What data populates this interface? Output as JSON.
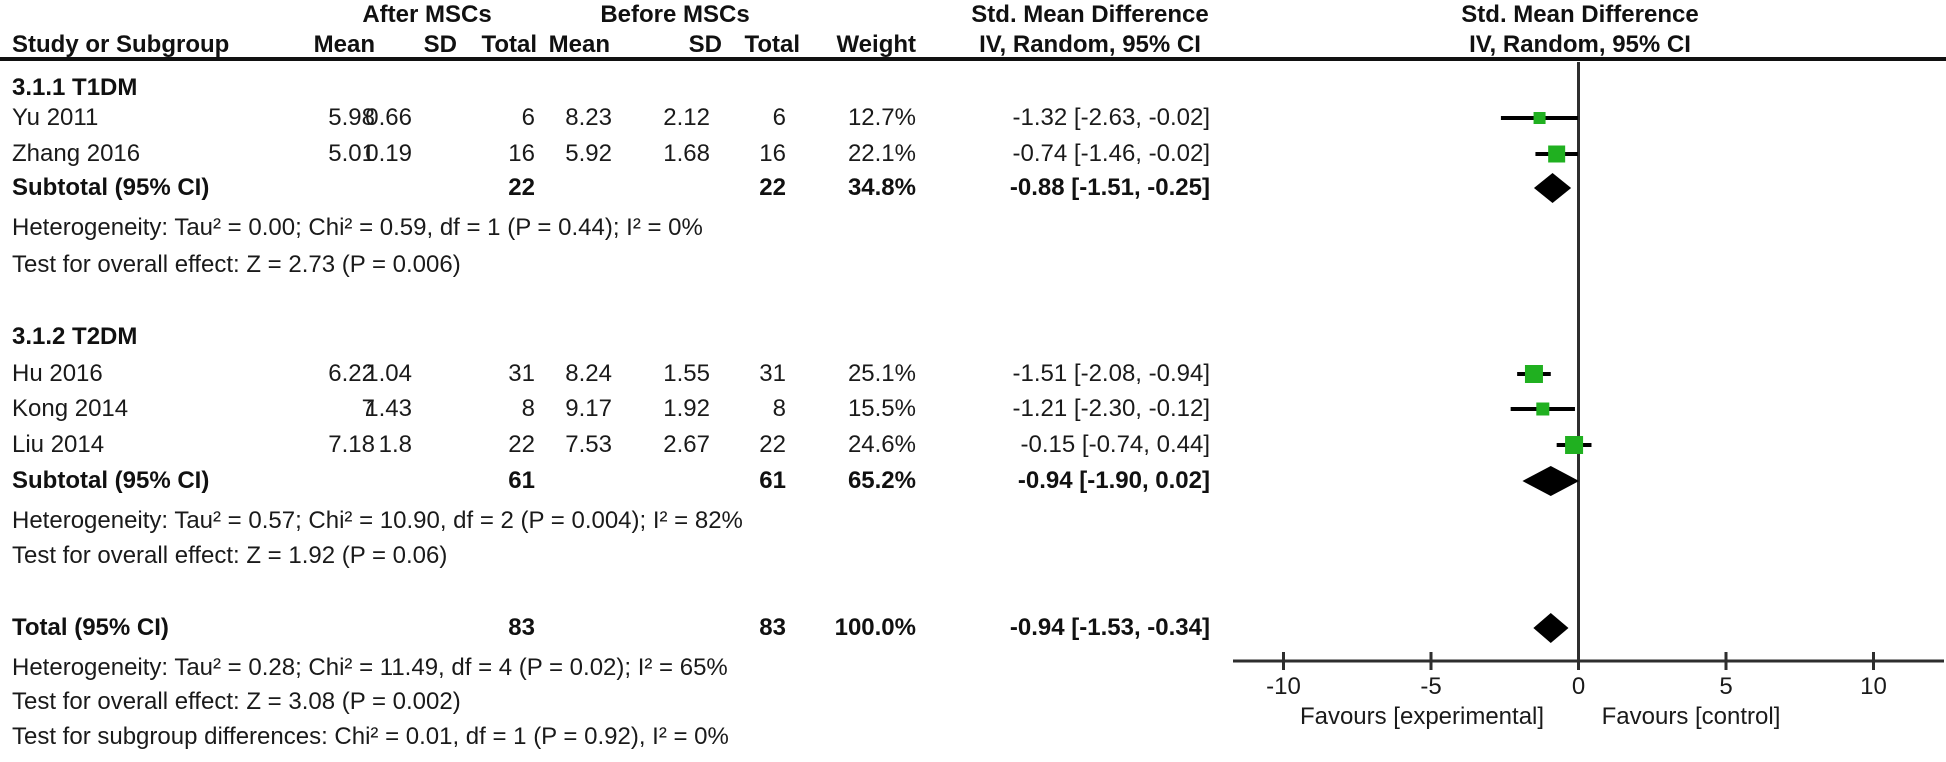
{
  "colors": {
    "marker_green": "#20B020",
    "ci_line": "#000000",
    "axis_line": "#2E2E2E",
    "text": "#1a1a1a"
  },
  "header": {
    "group_after": "After MSCs",
    "group_before": "Before MSCs",
    "smd_left": "Std. Mean Difference",
    "smd_right": "Std. Mean Difference",
    "study_col": "Study or Subgroup",
    "mean_a": "Mean",
    "sd_a": "SD",
    "total_a": "Total",
    "mean_b": "Mean",
    "sd_b": "SD",
    "total_b": "Total",
    "weight": "Weight",
    "ivci_left": "IV, Random, 95% CI",
    "ivci_right": "IV, Random, 95% CI"
  },
  "chart_data": {
    "type": "forest",
    "effect_measure": "Std. Mean Difference",
    "method": "IV, Random, 95% CI",
    "axis": {
      "ticks": [
        -10,
        -5,
        0,
        5,
        10
      ],
      "xmin": -11.7,
      "xmax": 12.4,
      "favours_left": "Favours [experimental]",
      "favours_right": "Favours [control]"
    },
    "groups": [
      {
        "label": "3.1.1 T1DM",
        "studies": [
          {
            "study": "Yu 2011",
            "mean_a": "5.98",
            "sd_a": "0.66",
            "total_a": "6",
            "mean_b": "8.23",
            "sd_b": "2.12",
            "total_b": "6",
            "weight": "12.7%",
            "ci_text": "-1.32 [-2.63, -0.02]"
          },
          {
            "study": "Zhang 2016",
            "mean_a": "5.01",
            "sd_a": "0.19",
            "total_a": "16",
            "mean_b": "5.92",
            "sd_b": "1.68",
            "total_b": "16",
            "weight": "22.1%",
            "ci_text": "-0.74 [-1.46, -0.02]"
          }
        ],
        "subtotal": {
          "label": "Subtotal (95% CI)",
          "total_a": "22",
          "total_b": "22",
          "weight": "34.8%",
          "ci_text": "-0.88 [-1.51, -0.25]"
        },
        "heterogeneity": "Heterogeneity: Tau² = 0.00; Chi² = 0.59, df = 1 (P = 0.44); I² = 0%",
        "overall_effect": "Test for overall effect: Z = 2.73 (P = 0.006)"
      },
      {
        "label": "3.1.2 T2DM",
        "studies": [
          {
            "study": "Hu 2016",
            "mean_a": "6.22",
            "sd_a": "1.04",
            "total_a": "31",
            "mean_b": "8.24",
            "sd_b": "1.55",
            "total_b": "31",
            "weight": "25.1%",
            "ci_text": "-1.51 [-2.08, -0.94]"
          },
          {
            "study": "Kong 2014",
            "mean_a": "7",
            "sd_a": "1.43",
            "total_a": "8",
            "mean_b": "9.17",
            "sd_b": "1.92",
            "total_b": "8",
            "weight": "15.5%",
            "ci_text": "-1.21 [-2.30, -0.12]"
          },
          {
            "study": "Liu 2014",
            "mean_a": "7.18",
            "sd_a": "1.8",
            "total_a": "22",
            "mean_b": "7.53",
            "sd_b": "2.67",
            "total_b": "22",
            "weight": "24.6%",
            "ci_text": "-0.15 [-0.74, 0.44]"
          }
        ],
        "subtotal": {
          "label": "Subtotal (95% CI)",
          "total_a": "61",
          "total_b": "61",
          "weight": "65.2%",
          "ci_text": "-0.94 [-1.90, 0.02]"
        },
        "heterogeneity": "Heterogeneity: Tau² = 0.57; Chi² = 10.90, df = 2 (P = 0.004); I² = 82%",
        "overall_effect": "Test for overall effect: Z = 1.92 (P = 0.06)"
      }
    ],
    "total": {
      "label": "Total (95% CI)",
      "total_a": "83",
      "total_b": "83",
      "weight": "100.0%",
      "ci_text": "-0.94 [-1.53, -0.34]"
    },
    "total_heterogeneity": "Heterogeneity: Tau² = 0.28; Chi² = 11.49, df = 4 (P = 0.02); I² = 65%",
    "total_overall_effect": "Test for overall effect: Z = 3.08 (P = 0.002)",
    "subgroup_differences": "Test for subgroup differences: Chi² = 0.01, df = 1 (P = 0.92), I² = 0%"
  }
}
